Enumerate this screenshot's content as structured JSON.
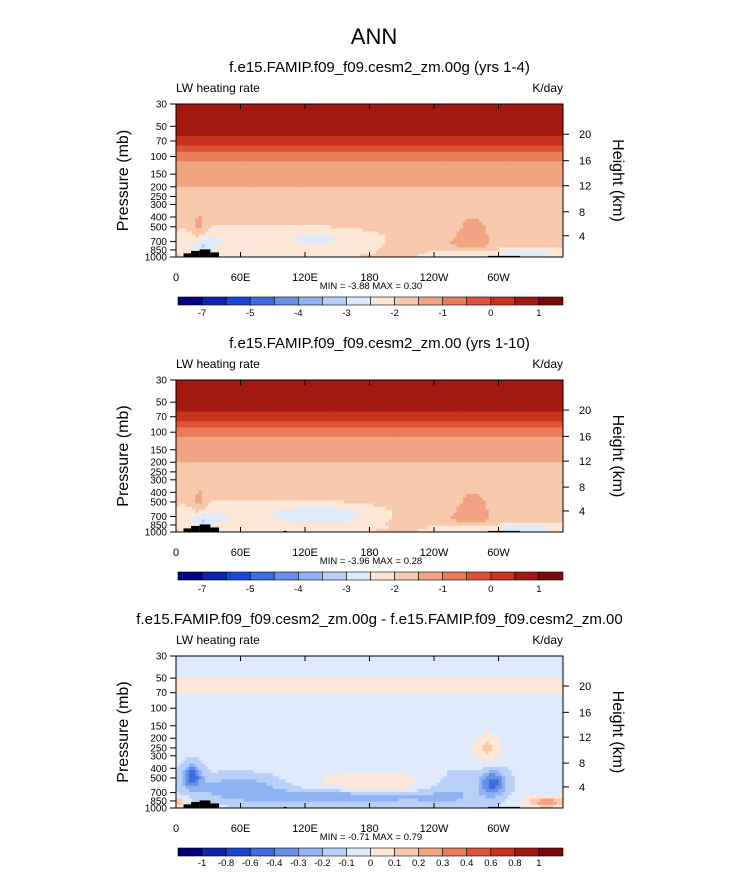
{
  "figure": {
    "title": "ANN"
  },
  "colors": {
    "frame": "#000000",
    "land": "#000000"
  },
  "chart_data": [
    {
      "type": "heatmap",
      "id": "p1",
      "title": "f.e15.FAMIP.f09_f09.cesm2_zm.00g (yrs 1-4)",
      "left_label": "LW heating rate",
      "right_label": "K/day",
      "ylabel": "Pressure (mb)",
      "ylabel_right": "Height (km)",
      "x_ticks": [
        {
          "lon": 0,
          "label": "0"
        },
        {
          "lon": 60,
          "label": "60E"
        },
        {
          "lon": 120,
          "label": "120E"
        },
        {
          "lon": 180,
          "label": "180"
        },
        {
          "lon": 240,
          "label": "120W"
        },
        {
          "lon": 300,
          "label": "60W"
        }
      ],
      "xlim": [
        0,
        360
      ],
      "y_ticks": [
        {
          "p": 30,
          "label": "30"
        },
        {
          "p": 50,
          "label": "50"
        },
        {
          "p": 70,
          "label": "70"
        },
        {
          "p": 100,
          "label": "100"
        },
        {
          "p": 150,
          "label": "150"
        },
        {
          "p": 200,
          "label": "200"
        },
        {
          "p": 250,
          "label": "250"
        },
        {
          "p": 300,
          "label": "300"
        },
        {
          "p": 400,
          "label": "400"
        },
        {
          "p": 500,
          "label": "500"
        },
        {
          "p": 700,
          "label": "700"
        },
        {
          "p": 850,
          "label": "850"
        },
        {
          "p": 1000,
          "label": "1000"
        }
      ],
      "ylim": [
        1000,
        30
      ],
      "height_ticks": [
        {
          "p": 60,
          "label": "20"
        },
        {
          "p": 110,
          "label": "16"
        },
        {
          "p": 195,
          "label": "12"
        },
        {
          "p": 355,
          "label": "8"
        },
        {
          "p": 615,
          "label": "4"
        }
      ],
      "min_max_label": "MIN =  -3.88  MAX =   0.30",
      "colorbar": {
        "colors": [
          "#00007f",
          "#0b24b1",
          "#1947d5",
          "#3f6be0",
          "#6690ea",
          "#8fb2f2",
          "#b8d0f8",
          "#deeafb",
          "#fde6d6",
          "#f7c8ac",
          "#f1a482",
          "#ea7c5b",
          "#de5337",
          "#c8321c",
          "#a21910",
          "#7a0a0a"
        ],
        "labels": [
          "-7",
          "",
          "-5",
          "",
          "-4",
          "",
          "-3",
          "",
          "-2",
          "",
          "-1",
          "",
          "0",
          "",
          "1"
        ]
      },
      "field": {
        "kind": "lw_heating",
        "vmin": -8,
        "vmax": 2,
        "note": "zonal-mean longitude-pressure field, approx. range -3.9 to 0.3 K/day"
      },
      "land": [
        {
          "lon0": 7,
          "lon1": 14,
          "p": 920
        },
        {
          "lon0": 14,
          "lon1": 22,
          "p": 870
        },
        {
          "lon0": 22,
          "lon1": 32,
          "p": 840
        },
        {
          "lon0": 32,
          "lon1": 40,
          "p": 900
        },
        {
          "lon0": 290,
          "lon1": 320,
          "p": 975
        }
      ]
    },
    {
      "type": "heatmap",
      "id": "p2",
      "title": "f.e15.FAMIP.f09_f09.cesm2_zm.00 (yrs 1-10)",
      "left_label": "LW heating rate",
      "right_label": "K/day",
      "ylabel": "Pressure (mb)",
      "ylabel_right": "Height (km)",
      "x_ticks": [
        {
          "lon": 0,
          "label": "0"
        },
        {
          "lon": 60,
          "label": "60E"
        },
        {
          "lon": 120,
          "label": "120E"
        },
        {
          "lon": 180,
          "label": "180"
        },
        {
          "lon": 240,
          "label": "120W"
        },
        {
          "lon": 300,
          "label": "60W"
        }
      ],
      "xlim": [
        0,
        360
      ],
      "y_ticks": [
        {
          "p": 30,
          "label": "30"
        },
        {
          "p": 50,
          "label": "50"
        },
        {
          "p": 70,
          "label": "70"
        },
        {
          "p": 100,
          "label": "100"
        },
        {
          "p": 150,
          "label": "150"
        },
        {
          "p": 200,
          "label": "200"
        },
        {
          "p": 250,
          "label": "250"
        },
        {
          "p": 300,
          "label": "300"
        },
        {
          "p": 400,
          "label": "400"
        },
        {
          "p": 500,
          "label": "500"
        },
        {
          "p": 700,
          "label": "700"
        },
        {
          "p": 850,
          "label": "850"
        },
        {
          "p": 1000,
          "label": "1000"
        }
      ],
      "ylim": [
        1000,
        30
      ],
      "height_ticks": [
        {
          "p": 60,
          "label": "20"
        },
        {
          "p": 110,
          "label": "16"
        },
        {
          "p": 195,
          "label": "12"
        },
        {
          "p": 355,
          "label": "8"
        },
        {
          "p": 615,
          "label": "4"
        }
      ],
      "min_max_label": "MIN =  -3.96  MAX =   0.28",
      "colorbar": {
        "colors": [
          "#00007f",
          "#0b24b1",
          "#1947d5",
          "#3f6be0",
          "#6690ea",
          "#8fb2f2",
          "#b8d0f8",
          "#deeafb",
          "#fde6d6",
          "#f7c8ac",
          "#f1a482",
          "#ea7c5b",
          "#de5337",
          "#c8321c",
          "#a21910",
          "#7a0a0a"
        ],
        "labels": [
          "-7",
          "",
          "-5",
          "",
          "-4",
          "",
          "-3",
          "",
          "-2",
          "",
          "-1",
          "",
          "0",
          "",
          "1"
        ]
      },
      "field": {
        "kind": "lw_heating",
        "vmin": -8,
        "vmax": 2,
        "note": "zonal-mean longitude-pressure field, approx. range -4.0 to 0.3 K/day"
      },
      "land": [
        {
          "lon0": 7,
          "lon1": 14,
          "p": 920
        },
        {
          "lon0": 14,
          "lon1": 22,
          "p": 870
        },
        {
          "lon0": 22,
          "lon1": 32,
          "p": 840
        },
        {
          "lon0": 32,
          "lon1": 40,
          "p": 900
        },
        {
          "lon0": 100,
          "lon1": 103,
          "p": 975
        },
        {
          "lon0": 290,
          "lon1": 320,
          "p": 975
        }
      ]
    },
    {
      "type": "heatmap",
      "id": "p3",
      "title": "f.e15.FAMIP.f09_f09.cesm2_zm.00g - f.e15.FAMIP.f09_f09.cesm2_zm.00",
      "left_label": "LW heating rate",
      "right_label": "K/day",
      "ylabel": "Pressure (mb)",
      "ylabel_right": "Height (km)",
      "x_ticks": [
        {
          "lon": 0,
          "label": "0"
        },
        {
          "lon": 60,
          "label": "60E"
        },
        {
          "lon": 120,
          "label": "120E"
        },
        {
          "lon": 180,
          "label": "180"
        },
        {
          "lon": 240,
          "label": "120W"
        },
        {
          "lon": 300,
          "label": "60W"
        }
      ],
      "xlim": [
        0,
        360
      ],
      "y_ticks": [
        {
          "p": 30,
          "label": "30"
        },
        {
          "p": 50,
          "label": "50"
        },
        {
          "p": 70,
          "label": "70"
        },
        {
          "p": 100,
          "label": "100"
        },
        {
          "p": 150,
          "label": "150"
        },
        {
          "p": 200,
          "label": "200"
        },
        {
          "p": 250,
          "label": "250"
        },
        {
          "p": 300,
          "label": "300"
        },
        {
          "p": 400,
          "label": "400"
        },
        {
          "p": 500,
          "label": "500"
        },
        {
          "p": 700,
          "label": "700"
        },
        {
          "p": 850,
          "label": "850"
        },
        {
          "p": 1000,
          "label": "1000"
        }
      ],
      "ylim": [
        1000,
        30
      ],
      "height_ticks": [
        {
          "p": 60,
          "label": "20"
        },
        {
          "p": 110,
          "label": "16"
        },
        {
          "p": 195,
          "label": "12"
        },
        {
          "p": 355,
          "label": "8"
        },
        {
          "p": 615,
          "label": "4"
        }
      ],
      "min_max_label": "MIN =  -0.71  MAX =   0.79",
      "colorbar": {
        "colors": [
          "#00007f",
          "#0b24b1",
          "#1947d5",
          "#3f6be0",
          "#6690ea",
          "#8fb2f2",
          "#b8d0f8",
          "#deeafb",
          "#fde6d6",
          "#f7c8ac",
          "#f1a482",
          "#ea7c5b",
          "#de5337",
          "#c8321c",
          "#a21910",
          "#7a0a0a"
        ],
        "labels": [
          "-1",
          "-0.8",
          "-0.6",
          "-0.4",
          "-0.3",
          "-0.2",
          "-0.1",
          "0",
          "0.1",
          "0.2",
          "0.3",
          "0.4",
          "0.6",
          "0.8",
          "1"
        ]
      },
      "field": {
        "kind": "difference",
        "vmin": -1.2,
        "vmax": 1.2,
        "note": "difference field, approx. range -0.71 to 0.79 K/day"
      },
      "land": [
        {
          "lon0": 7,
          "lon1": 14,
          "p": 920
        },
        {
          "lon0": 14,
          "lon1": 22,
          "p": 870
        },
        {
          "lon0": 22,
          "lon1": 32,
          "p": 840
        },
        {
          "lon0": 32,
          "lon1": 40,
          "p": 900
        },
        {
          "lon0": 100,
          "lon1": 103,
          "p": 975
        },
        {
          "lon0": 290,
          "lon1": 320,
          "p": 975
        }
      ]
    }
  ]
}
